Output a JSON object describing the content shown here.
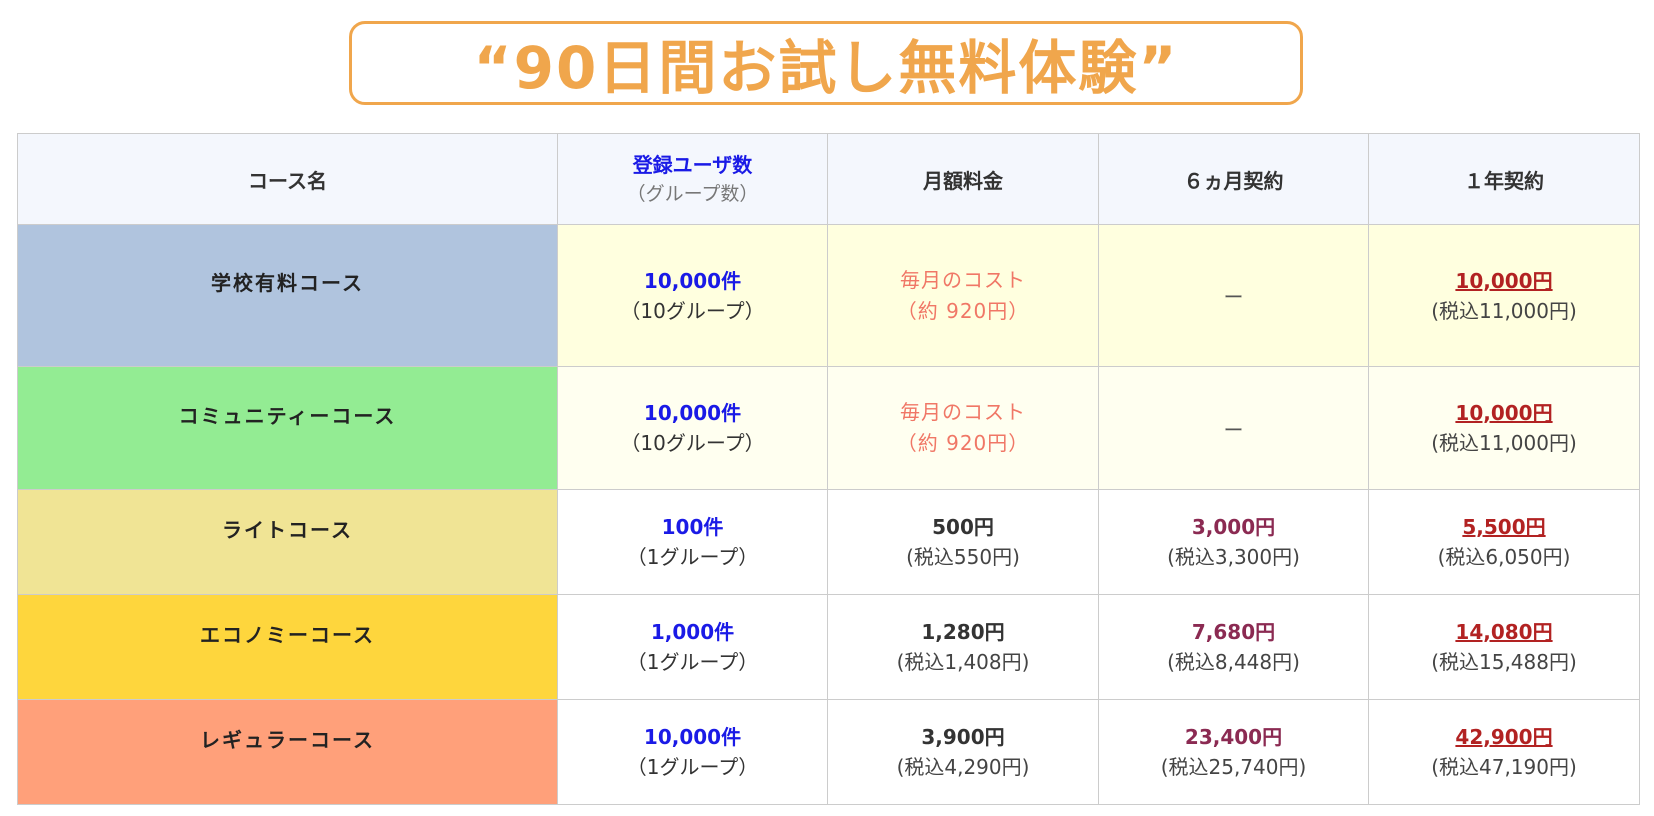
{
  "banner": {
    "title": "“90日間お試し無料体験”"
  },
  "table": {
    "headers": {
      "course": "コース名",
      "users_main": "登録ユーザ数",
      "users_sub": "（グループ数）",
      "monthly": "月額料金",
      "six_month": "６ヵ月契約",
      "one_year": "１年契約"
    },
    "rows": [
      {
        "course": "学校有料コース",
        "users": "10,000件",
        "groups": "（10グループ）",
        "monthly_line1": "毎月のコスト",
        "monthly_line2": "（約 920円）",
        "six_month": "ー",
        "year_price": "10,000円",
        "year_tax": "(税込11,000円)",
        "color": "#b0c4de"
      },
      {
        "course": "コミュニティーコース",
        "users": "10,000件",
        "groups": "（10グループ）",
        "monthly_line1": "毎月のコスト",
        "monthly_line2": "（約 920円）",
        "six_month": "ー",
        "year_price": "10,000円",
        "year_tax": "(税込11,000円)",
        "color": "#93ec93"
      },
      {
        "course": "ライトコース",
        "users": "100件",
        "groups": "（1グループ）",
        "monthly_price": "500円",
        "monthly_tax": "(税込550円)",
        "six_price": "3,000円",
        "six_tax": "(税込3,300円)",
        "year_price": "5,500円",
        "year_tax": "(税込6,050円)",
        "color": "#f0e495"
      },
      {
        "course": "エコノミーコース",
        "users": "1,000件",
        "groups": "（1グループ）",
        "monthly_price": "1,280円",
        "monthly_tax": "(税込1,408円)",
        "six_price": "7,680円",
        "six_tax": "(税込8,448円)",
        "year_price": "14,080円",
        "year_tax": "(税込15,488円)",
        "color": "#fed63d"
      },
      {
        "course": "レギュラーコース",
        "users": "10,000件",
        "groups": "（1グループ）",
        "monthly_price": "3,900円",
        "monthly_tax": "(税込4,290円)",
        "six_price": "23,400円",
        "six_tax": "(税込25,740円)",
        "year_price": "42,900円",
        "year_tax": "(税込47,190円)",
        "color": "#ffa07a"
      }
    ]
  }
}
